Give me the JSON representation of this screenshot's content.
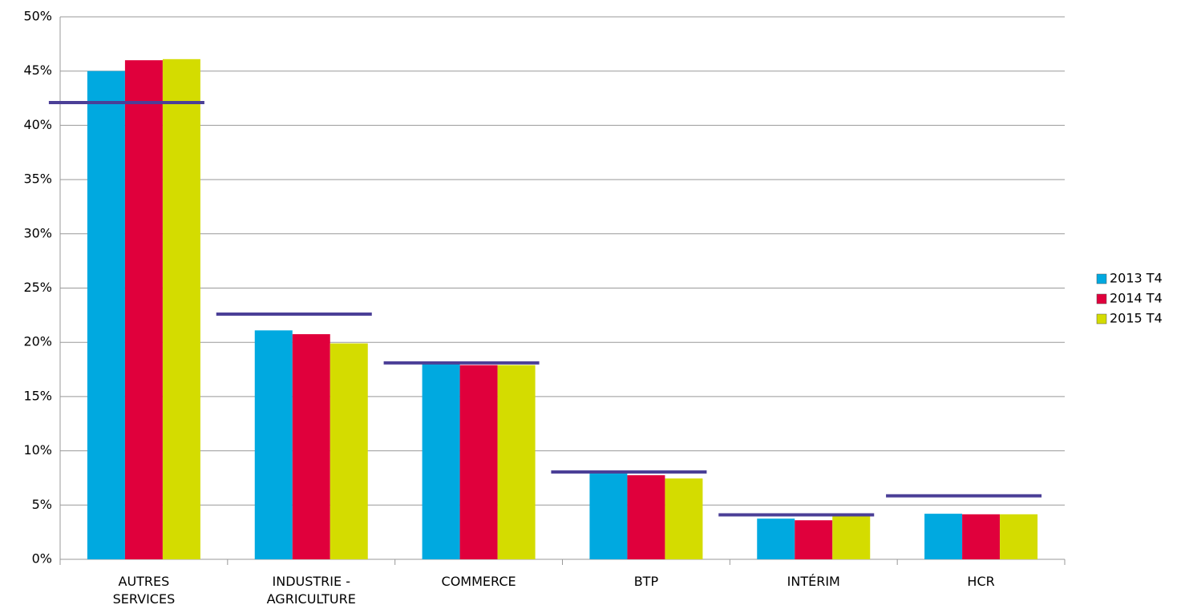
{
  "chart_data": {
    "type": "bar",
    "categories": [
      "AUTRES\nSERVICES",
      "INDUSTRIE -\nAGRICULTURE",
      "COMMERCE",
      "BTP",
      "INTÉRIM",
      "HCR"
    ],
    "series": [
      {
        "name": "2013 T4",
        "color": "#00a9e0",
        "values": [
          45.0,
          21.1,
          18.0,
          7.9,
          3.75,
          4.2
        ]
      },
      {
        "name": "2014 T4",
        "color": "#e0003c",
        "values": [
          46.0,
          20.75,
          17.9,
          7.75,
          3.6,
          4.15
        ]
      },
      {
        "name": "2015 T4",
        "color": "#d4dc00",
        "values": [
          46.1,
          19.9,
          17.9,
          7.45,
          4.05,
          4.15
        ]
      }
    ],
    "reference_values": [
      42.1,
      22.6,
      18.1,
      8.05,
      4.1,
      5.85
    ],
    "reference_color": "#4b3f97",
    "ylim": [
      0,
      50
    ],
    "yticks": [
      {
        "value": 0,
        "label": "0%"
      },
      {
        "value": 5,
        "label": "5%"
      },
      {
        "value": 10,
        "label": "10%"
      },
      {
        "value": 15,
        "label": "15%"
      },
      {
        "value": 20,
        "label": "20%"
      },
      {
        "value": 25,
        "label": "25%"
      },
      {
        "value": 30,
        "label": "30%"
      },
      {
        "value": 35,
        "label": "35%"
      },
      {
        "value": 40,
        "label": "40%"
      },
      {
        "value": 45,
        "label": "45%"
      },
      {
        "value": 50,
        "label": "50%"
      }
    ],
    "grid": true,
    "legend": "right"
  }
}
